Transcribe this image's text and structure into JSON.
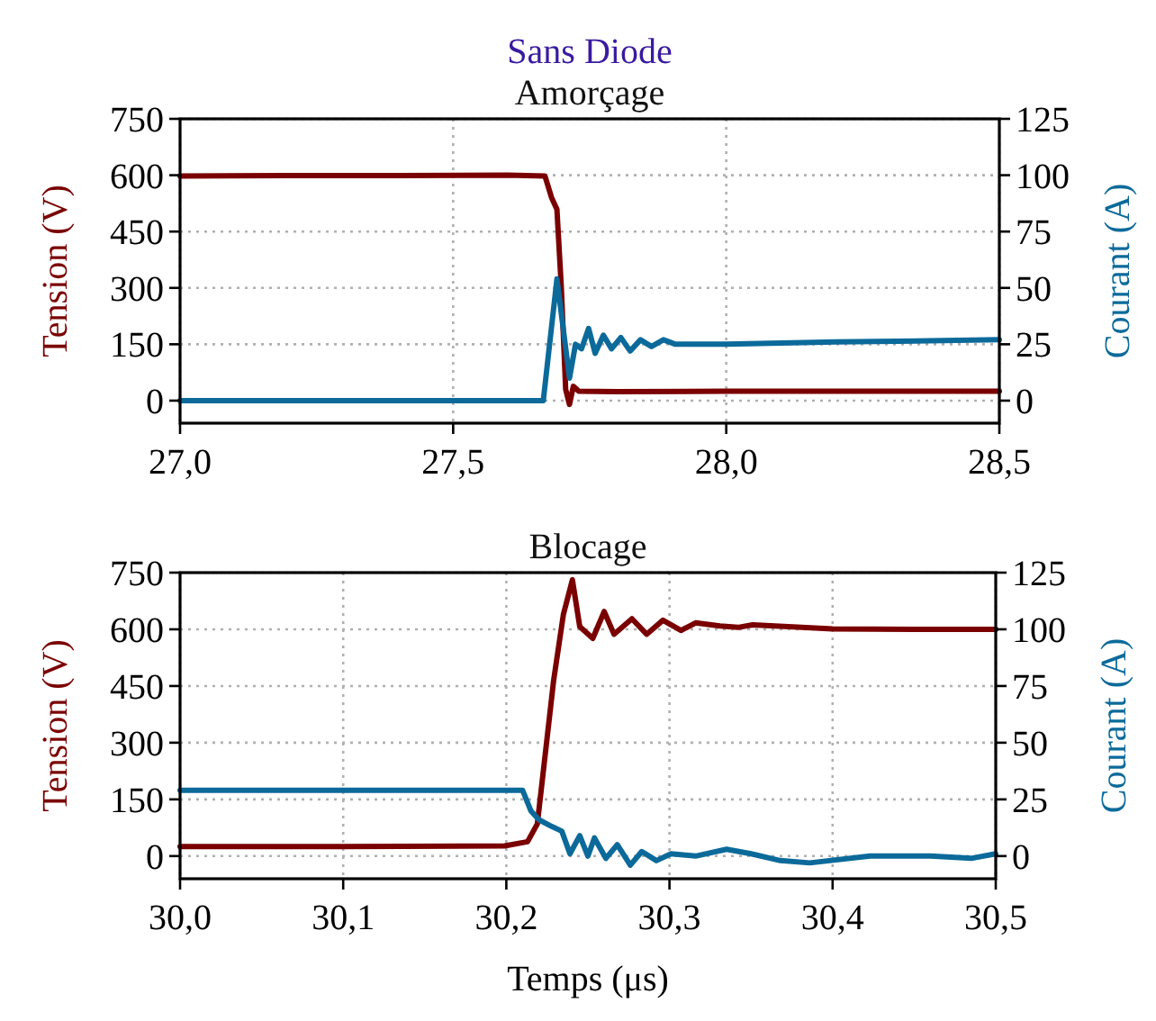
{
  "chart_data": [
    {
      "type": "line",
      "title": "Sans Diode",
      "subtitle": "Amorçage",
      "ylabel": "Tension (V)",
      "y2label": "Courant (A)",
      "grid": true,
      "marker": "none",
      "line_style": "solid",
      "xlim": [
        27.0,
        28.5
      ],
      "xticks": [
        {
          "value": 27.0,
          "label": "27,0"
        },
        {
          "value": 27.5,
          "label": "27,5"
        },
        {
          "value": 28.0,
          "label": "28,0"
        },
        {
          "value": 28.5,
          "label": "28,5"
        }
      ],
      "ylim": [
        -60,
        750
      ],
      "yticks": [
        0,
        150,
        300,
        450,
        600,
        750
      ],
      "y2lim": [
        -10,
        125
      ],
      "y2ticks": [
        0,
        25,
        50,
        75,
        100,
        125
      ],
      "series": [
        {
          "color": "#7a0000",
          "x": [
            27.0,
            27.2,
            27.4,
            27.6,
            27.668,
            27.68,
            27.69,
            27.698,
            27.706,
            27.713,
            27.72,
            27.73,
            27.8,
            28.0,
            28.2,
            28.5
          ],
          "values": [
            598,
            599,
            599,
            600,
            598,
            541,
            509,
            302,
            30,
            -10,
            38,
            25,
            24,
            25,
            25,
            25
          ]
        },
        {
          "color": "#0b6a9a",
          "axis": "y2",
          "x": [
            27.0,
            27.3,
            27.6,
            27.665,
            27.69,
            27.713,
            27.724,
            27.735,
            27.748,
            27.76,
            27.775,
            27.79,
            27.807,
            27.824,
            27.843,
            27.863,
            27.885,
            27.907,
            28.0,
            28.2,
            28.5
          ],
          "values": [
            0,
            0,
            0,
            0,
            54,
            10,
            25,
            23,
            32,
            21,
            29,
            23,
            28,
            22,
            27,
            24,
            27,
            25,
            25,
            26,
            27
          ]
        }
      ]
    },
    {
      "type": "line",
      "title": "Blocage",
      "xlabel": "Temps (μs)",
      "ylabel": "Tension (V)",
      "y2label": "Courant (A)",
      "grid": true,
      "marker": "none",
      "line_style": "solid",
      "xlim": [
        30.0,
        30.5
      ],
      "xticks": [
        {
          "value": 30.0,
          "label": "30,0"
        },
        {
          "value": 30.1,
          "label": "30,1"
        },
        {
          "value": 30.2,
          "label": "30,2"
        },
        {
          "value": 30.3,
          "label": "30,3"
        },
        {
          "value": 30.4,
          "label": "30,4"
        },
        {
          "value": 30.5,
          "label": "30,5"
        }
      ],
      "ylim": [
        -60,
        750
      ],
      "yticks": [
        0,
        150,
        300,
        450,
        600,
        750
      ],
      "y2lim": [
        -10,
        125
      ],
      "y2ticks": [
        0,
        25,
        50,
        75,
        100,
        125
      ],
      "series": [
        {
          "color": "#7a0000",
          "x": [
            30.0,
            30.1,
            30.199,
            30.213,
            30.219,
            30.224,
            30.229,
            30.235,
            30.2405,
            30.245,
            30.253,
            30.26,
            30.266,
            30.277,
            30.286,
            30.296,
            30.307,
            30.316,
            30.331,
            30.342,
            30.351,
            30.4,
            30.45,
            30.5
          ],
          "values": [
            25,
            25,
            27,
            38,
            85,
            275,
            465,
            640,
            731,
            607,
            576,
            647,
            587,
            628,
            587,
            624,
            597,
            617,
            609,
            605,
            612,
            601,
            600,
            600
          ]
        },
        {
          "color": "#0b6a9a",
          "axis": "y2",
          "x": [
            30.0,
            30.1,
            30.2,
            30.21,
            30.215,
            30.22,
            30.228,
            30.234,
            30.239,
            30.245,
            30.25,
            30.254,
            30.261,
            30.268,
            30.276,
            30.283,
            30.292,
            30.301,
            30.316,
            30.335,
            30.35,
            30.368,
            30.386,
            30.423,
            30.46,
            30.485,
            30.5
          ],
          "values": [
            29,
            29,
            29,
            29,
            20,
            16,
            13,
            11,
            1,
            9,
            0,
            8,
            -1,
            5,
            -4,
            2,
            -2,
            1,
            0,
            3,
            1,
            -2,
            -3,
            0,
            0,
            -1,
            1
          ]
        }
      ]
    }
  ]
}
